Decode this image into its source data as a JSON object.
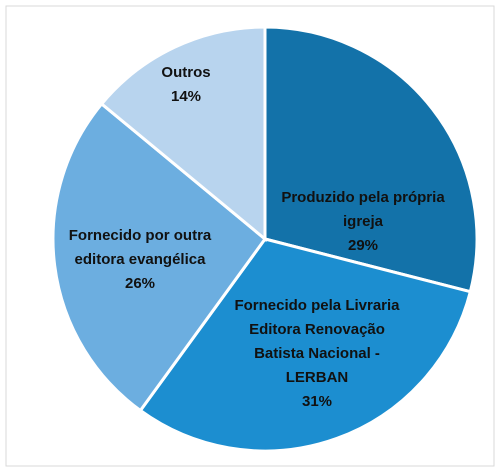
{
  "chart_data": {
    "type": "pie",
    "categories": [
      "Produzido pela própria igreja",
      "Fornecido pela Livraria Editora Renovação Batista Nacional - LERBAN",
      "Fornecido por outra editora evangélica",
      "Outros"
    ],
    "values": [
      29,
      31,
      26,
      14
    ],
    "value_labels": [
      "29%",
      "31%",
      "26%",
      "14%"
    ],
    "colors": [
      "#1372a9",
      "#1c8ed0",
      "#6caee0",
      "#b8d4ee"
    ]
  }
}
